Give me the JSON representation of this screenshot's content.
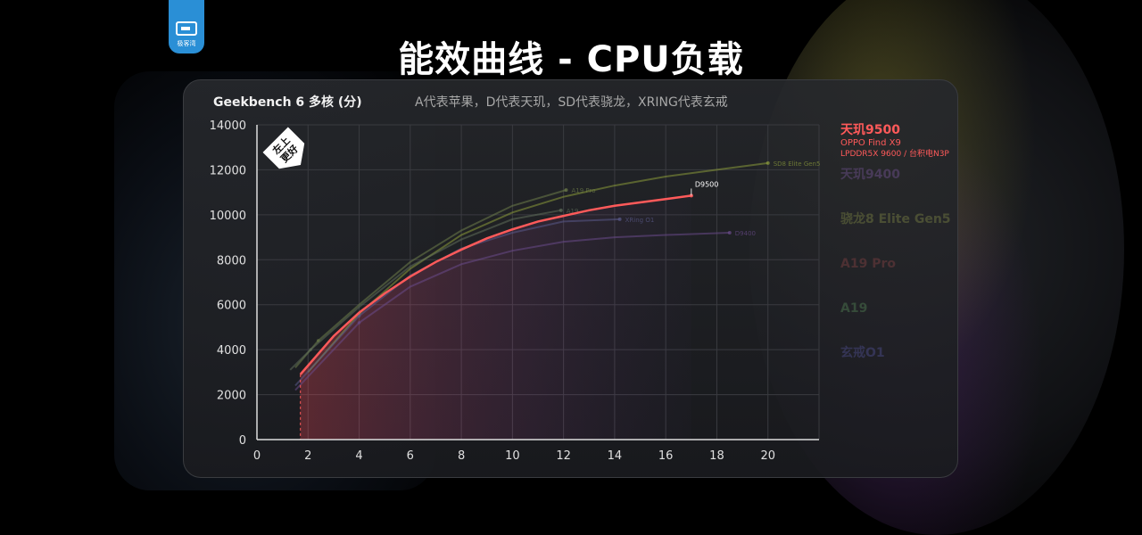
{
  "header": {
    "logo_text": "极客湾",
    "title": "能效曲线 - CPU负载"
  },
  "chart_data": {
    "type": "line",
    "title": "Geekbench 6 多核 (分)",
    "subtitle": "A代表苹果，D代表天玑，SD代表骁龙，XRING代表玄戒",
    "badge": "左上更好",
    "xlim": [
      0,
      22
    ],
    "ylim": [
      0,
      14000
    ],
    "x_ticks": [
      0,
      2,
      4,
      6,
      8,
      10,
      12,
      14,
      16,
      18,
      20
    ],
    "y_ticks": [
      0,
      2000,
      4000,
      6000,
      8000,
      10000,
      12000,
      14000
    ],
    "grid": true,
    "legend_position": "right",
    "series": [
      {
        "name": "D9500",
        "label": "D9500",
        "color": "#ff5a5a",
        "highlight": true,
        "x": [
          1.7,
          3,
          4,
          5,
          6,
          7,
          8,
          9,
          10,
          11,
          12,
          13,
          14,
          15,
          16,
          17
        ],
        "y": [
          2900,
          4600,
          5650,
          6500,
          7250,
          7900,
          8450,
          8950,
          9350,
          9700,
          9950,
          10200,
          10400,
          10550,
          10700,
          10850
        ]
      },
      {
        "name": "SD8 Elite Gen5",
        "label": "SD8 Elite Gen5",
        "color": "#8a9a3a",
        "highlight": false,
        "x": [
          2,
          4,
          6,
          8,
          10,
          12,
          14,
          16,
          18,
          20
        ],
        "y": [
          3000,
          5600,
          7600,
          9100,
          10100,
          10800,
          11300,
          11700,
          12000,
          12300
        ]
      },
      {
        "name": "A19 Pro",
        "label": "A19 Pro",
        "color": "#6e7e4a",
        "highlight": false,
        "x": [
          1.5,
          2.4,
          4,
          6,
          8,
          10,
          12.1
        ],
        "y": [
          3200,
          4400,
          6000,
          7900,
          9300,
          10400,
          11100
        ]
      },
      {
        "name": "A19",
        "label": "A19",
        "color": "#5e6e5a",
        "highlight": false,
        "x": [
          1.3,
          2.1,
          4,
          6,
          8,
          10,
          11.9
        ],
        "y": [
          3100,
          4000,
          5900,
          7700,
          8900,
          9800,
          10200
        ]
      },
      {
        "name": "XRing O1",
        "label": "XRing O1",
        "color": "#5a5a8a",
        "highlight": false,
        "x": [
          1.5,
          4,
          6,
          8,
          10,
          12,
          14.2
        ],
        "y": [
          2400,
          5500,
          7300,
          8500,
          9200,
          9700,
          9800
        ]
      },
      {
        "name": "D9400",
        "label": "D9400",
        "color": "#6a4a8a",
        "highlight": false,
        "x": [
          1.5,
          4,
          6,
          8,
          10,
          12,
          14,
          16,
          18.5
        ],
        "y": [
          2200,
          5200,
          6800,
          7800,
          8400,
          8800,
          9000,
          9100,
          9200
        ]
      }
    ]
  },
  "legend": [
    {
      "name": "天玑9500",
      "device": "OPPO Find X9",
      "mem": "LPDDR5X 9600 / 台积电N3P",
      "color": "#ff5a5a",
      "dim": false
    },
    {
      "name": "天玑9400",
      "device": "",
      "mem": "",
      "color": "#c080ff",
      "dim": true
    },
    {
      "name": "骁龙8 Elite Gen5",
      "device": "",
      "mem": "",
      "color": "#d0e060",
      "dim": true
    },
    {
      "name": "A19 Pro",
      "device": "",
      "mem": "",
      "color": "#e06060",
      "dim": true
    },
    {
      "name": "A19",
      "device": "",
      "mem": "",
      "color": "#80e080",
      "dim": true
    },
    {
      "name": "玄戒O1",
      "device": "",
      "mem": "",
      "color": "#8080ff",
      "dim": true
    }
  ]
}
